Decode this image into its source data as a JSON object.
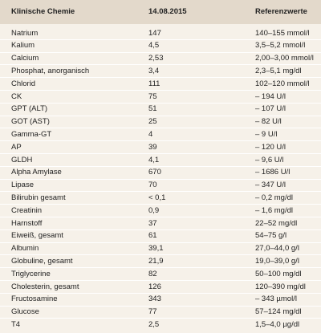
{
  "table": {
    "header": [
      "Klinische Chemie",
      "14.08.2015",
      "Referenzwerte"
    ],
    "rows": [
      [
        "Natrium",
        "147",
        "140–155 mmol/l"
      ],
      [
        "Kalium",
        "4,5",
        "3,5–5,2 mmol/l"
      ],
      [
        "Calcium",
        "2,53",
        "2,00–3,00 mmol/l"
      ],
      [
        "Phosphat, anorganisch",
        "3,4",
        "2,3–5,1 mg/dl"
      ],
      [
        "Chlorid",
        "111",
        "102–120 mmol/l"
      ],
      [
        "CK",
        "75",
        "– 194 U/l"
      ],
      [
        "GPT (ALT)",
        "51",
        "– 107 U/l"
      ],
      [
        "GOT (AST)",
        "25",
        "– 82 U/l"
      ],
      [
        "Gamma-GT",
        "4",
        "– 9 U/l"
      ],
      [
        "AP",
        "39",
        "– 120 U/l"
      ],
      [
        "GLDH",
        "4,1",
        "– 9,6 U/l"
      ],
      [
        "Alpha Amylase",
        "670",
        "– 1686 U/l"
      ],
      [
        "Lipase",
        "70",
        "– 347 U/l"
      ],
      [
        "Bilirubin gesamt",
        "< 0,1",
        "– 0,2 mg/dl"
      ],
      [
        "Creatinin",
        "0,9",
        "– 1,6 mg/dl"
      ],
      [
        "Harnstoff",
        "37",
        "22–52 mg/dl"
      ],
      [
        "Eiweiß, gesamt",
        "61",
        "54–75 g/l"
      ],
      [
        "Albumin",
        "39,1",
        "27,0–44,0 g/l"
      ],
      [
        "Globuline, gesamt",
        "21,9",
        "19,0–39,0 g/l"
      ],
      [
        "Triglycerine",
        "82",
        "50–100 mg/dl"
      ],
      [
        "Cholesterin, gesamt",
        "126",
        "120–390 mg/dl"
      ],
      [
        "Fructosamine",
        "343",
        "– 343 µmol/l"
      ],
      [
        "Glucose",
        "77",
        "57–124 mg/dl"
      ],
      [
        "T4",
        "2,5",
        "1,5–4,0 µg/dl"
      ]
    ]
  }
}
